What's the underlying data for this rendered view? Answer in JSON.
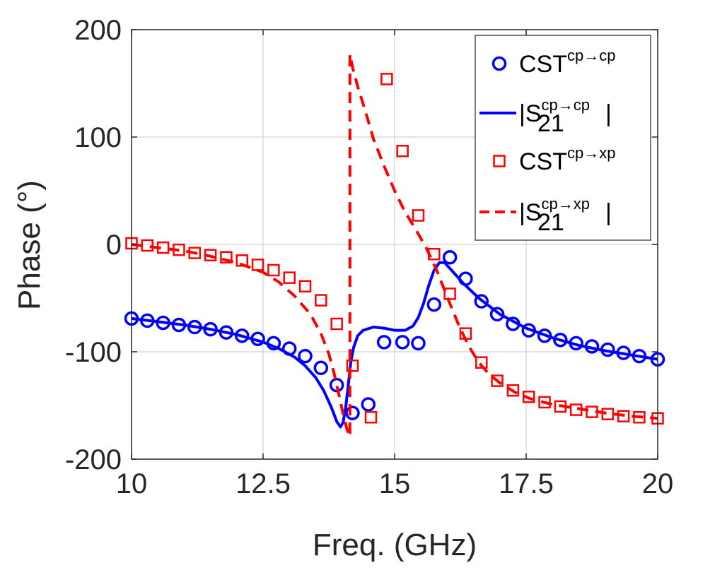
{
  "chart_data": {
    "type": "line",
    "title": "",
    "xlabel": "Freq. (GHz)",
    "ylabel": "Phase (°)",
    "xlim": [
      10,
      20
    ],
    "ylim": [
      -200,
      200
    ],
    "grid": true,
    "legend_position": "top-right",
    "x_ticks": [
      10,
      12.5,
      15,
      17.5,
      20
    ],
    "x_tick_labels": [
      "10",
      "12.5",
      "15",
      "17.5",
      "20"
    ],
    "y_ticks": [
      -200,
      -100,
      0,
      100,
      200
    ],
    "y_tick_labels": [
      "-200",
      "-100",
      "0",
      "100",
      "200"
    ],
    "series": [
      {
        "name": "CST cp→cp",
        "legend_main": "CST",
        "legend_sup": "cp→cp",
        "legend_sub": "",
        "legend_suffix": "",
        "style": "circle",
        "color": "#0000ff",
        "x": [
          10.0,
          10.3,
          10.6,
          10.9,
          11.2,
          11.5,
          11.8,
          12.1,
          12.4,
          12.7,
          13.0,
          13.3,
          13.6,
          13.9,
          14.2,
          14.5,
          14.8,
          15.15,
          15.45,
          15.75,
          16.05,
          16.35,
          16.65,
          16.95,
          17.25,
          17.55,
          17.85,
          18.15,
          18.45,
          18.75,
          19.05,
          19.35,
          19.65,
          20.0
        ],
        "y": [
          -69,
          -71,
          -73,
          -75,
          -77,
          -79,
          -82,
          -85,
          -88,
          -92,
          -97,
          -104,
          -115,
          -131,
          -157,
          -149,
          -91,
          -91,
          -92,
          -56,
          -12,
          -32,
          -53,
          -65,
          -74,
          -80,
          -85,
          -89,
          -92,
          -95,
          -98,
          -101,
          -104,
          -107
        ]
      },
      {
        "name": "|S21 cp→cp|",
        "legend_main": "|S",
        "legend_sup": "cp→cp",
        "legend_sub": "21",
        "legend_suffix": "|",
        "style": "solid",
        "color": "#0000ff",
        "x": [
          10.0,
          10.5,
          11.0,
          11.5,
          12.0,
          12.5,
          12.8,
          13.1,
          13.3,
          13.5,
          13.65,
          13.8,
          13.9,
          13.97,
          14.02,
          14.07,
          14.12,
          14.17,
          14.22,
          14.3,
          14.4,
          14.6,
          14.8,
          15.0,
          15.2,
          15.35,
          15.45,
          15.55,
          15.65,
          15.75,
          15.85,
          15.95,
          16.1,
          16.3,
          16.6,
          17.0,
          17.5,
          18.0,
          18.5,
          19.0,
          19.5,
          20.0
        ],
        "y": [
          -69,
          -72,
          -75,
          -79,
          -84,
          -91,
          -97,
          -105,
          -113,
          -124,
          -136,
          -152,
          -165,
          -170,
          -166,
          -152,
          -131,
          -109,
          -96,
          -85,
          -80,
          -77,
          -78,
          -80,
          -80,
          -76,
          -68,
          -55,
          -38,
          -24,
          -17,
          -17,
          -25,
          -36,
          -50,
          -65,
          -78,
          -87,
          -94,
          -99,
          -103,
          -107
        ]
      },
      {
        "name": "CST cp→xp",
        "legend_main": "CST",
        "legend_sup": "cp→xp",
        "legend_sub": "",
        "legend_suffix": "",
        "style": "square",
        "color": "#ff0000",
        "x": [
          10.0,
          10.3,
          10.6,
          10.9,
          11.2,
          11.5,
          11.8,
          12.1,
          12.4,
          12.7,
          13.0,
          13.3,
          13.6,
          13.9,
          14.2,
          14.55,
          14.85,
          15.15,
          15.45,
          15.75,
          16.05,
          16.35,
          16.65,
          16.95,
          17.25,
          17.55,
          17.85,
          18.15,
          18.45,
          18.75,
          19.05,
          19.35,
          19.65,
          20.0
        ],
        "y": [
          1,
          -1,
          -3,
          -5,
          -8,
          -10,
          -12,
          -15,
          -19,
          -24,
          -31,
          -39,
          -52,
          -74,
          -113,
          -161,
          154,
          87,
          27,
          -9,
          -46,
          -83,
          -110,
          -127,
          -136,
          -142,
          -147,
          -151,
          -154,
          -156,
          -158,
          -160,
          -161,
          -162
        ]
      },
      {
        "name": "|S21 cp→xp|",
        "legend_main": "|S",
        "legend_sup": "cp→xp",
        "legend_sub": "21",
        "legend_suffix": "|",
        "style": "dashed",
        "color": "#ff0000",
        "x": [
          10.0,
          10.5,
          11.0,
          11.5,
          12.0,
          12.5,
          12.8,
          13.1,
          13.4,
          13.6,
          13.75,
          13.85,
          13.95,
          14.03,
          14.1,
          14.15,
          14.15,
          14.2,
          14.3,
          14.45,
          14.6,
          14.8,
          15.0,
          15.2,
          15.4,
          15.6,
          15.8,
          16.0,
          16.2,
          16.4,
          16.6,
          16.8,
          17.0,
          17.3,
          17.6,
          18.0,
          18.5,
          19.0,
          19.5,
          20.0
        ],
        "y": [
          0,
          -3,
          -6,
          -11,
          -17,
          -26,
          -35,
          -48,
          -65,
          -83,
          -102,
          -120,
          -142,
          -160,
          -173,
          -179,
          177,
          165,
          147,
          123,
          98,
          73,
          50,
          30,
          14,
          -3,
          -24,
          -49,
          -73,
          -94,
          -110,
          -121,
          -129,
          -138,
          -144,
          -149,
          -153,
          -157,
          -160,
          -162
        ]
      }
    ]
  }
}
